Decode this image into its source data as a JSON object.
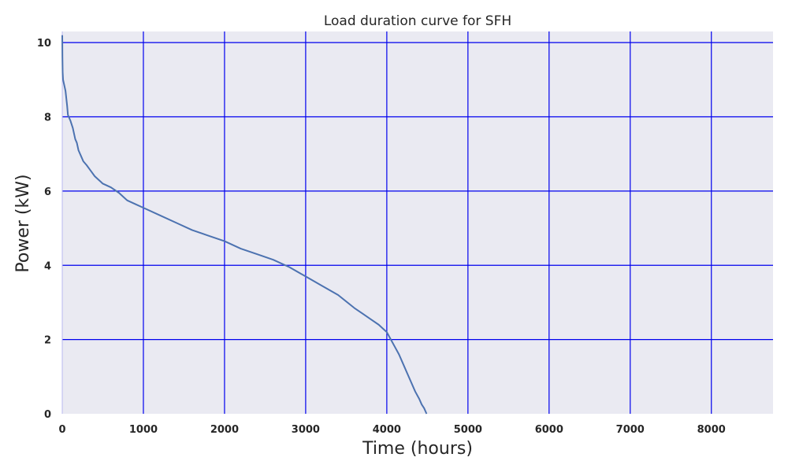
{
  "chart_data": {
    "type": "line",
    "title": "Load duration curve for SFH",
    "xlabel": "Time (hours)",
    "ylabel": "Power (kW)",
    "xlim": [
      0,
      8760
    ],
    "ylim": [
      0,
      10.3
    ],
    "xticks": [
      0,
      1000,
      2000,
      3000,
      4000,
      5000,
      6000,
      7000,
      8000
    ],
    "yticks": [
      0,
      2,
      4,
      6,
      8,
      10
    ],
    "grid": true,
    "legend": "none",
    "colors": {
      "plot_background": "#eaeaf2",
      "grid": "#0000ee",
      "line": "#4c72b0"
    },
    "series": [
      {
        "x": [
          0,
          2,
          5,
          10,
          20,
          40,
          60,
          70,
          80,
          100,
          130,
          160,
          180,
          200,
          230,
          260,
          300,
          350,
          400,
          450,
          500,
          550,
          600,
          700,
          800,
          900,
          1000,
          1200,
          1400,
          1600,
          1800,
          2000,
          2200,
          2400,
          2600,
          2800,
          3000,
          3200,
          3400,
          3600,
          3700,
          3800,
          3900,
          3950,
          4000,
          4050,
          4100,
          4150,
          4200,
          4250,
          4300,
          4350,
          4400,
          4430,
          4460,
          4480,
          4490
        ],
        "values": [
          10.2,
          9.6,
          9.2,
          9.0,
          8.9,
          8.7,
          8.3,
          8.05,
          8.0,
          7.9,
          7.7,
          7.4,
          7.3,
          7.1,
          6.95,
          6.8,
          6.7,
          6.55,
          6.4,
          6.3,
          6.2,
          6.15,
          6.1,
          5.95,
          5.75,
          5.65,
          5.55,
          5.35,
          5.15,
          4.95,
          4.8,
          4.65,
          4.45,
          4.3,
          4.15,
          3.95,
          3.7,
          3.45,
          3.2,
          2.85,
          2.7,
          2.55,
          2.4,
          2.3,
          2.2,
          2.0,
          1.8,
          1.6,
          1.35,
          1.1,
          0.85,
          0.6,
          0.4,
          0.25,
          0.15,
          0.05,
          0.0
        ]
      }
    ]
  }
}
